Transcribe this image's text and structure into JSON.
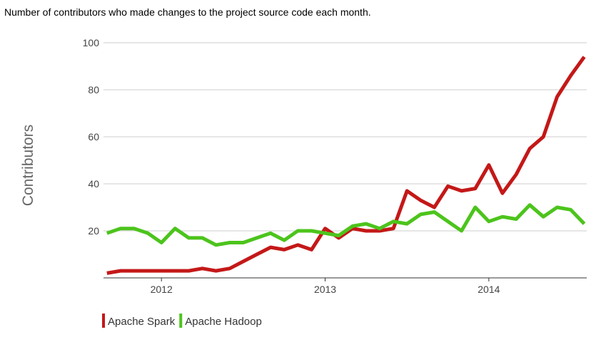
{
  "chart_data": {
    "type": "line",
    "title": "Number of contributors who made changes to the project source code each month.",
    "y_label": "Contributors",
    "x": [
      2011.667,
      2011.75,
      2011.833,
      2011.917,
      2012,
      2012.083,
      2012.167,
      2012.25,
      2012.333,
      2012.417,
      2012.5,
      2012.583,
      2012.667,
      2012.75,
      2012.833,
      2012.917,
      2013,
      2013.083,
      2013.167,
      2013.25,
      2013.333,
      2013.417,
      2013.5,
      2013.583,
      2013.667,
      2013.75,
      2013.833,
      2013.917,
      2014,
      2014.083,
      2014.167,
      2014.25,
      2014.333,
      2014.417,
      2014.5,
      2014.583
    ],
    "series": [
      {
        "name": "Apache Spark",
        "color": "#c41818",
        "values": [
          2,
          3,
          3,
          3,
          3,
          3,
          3,
          4,
          3,
          4,
          7,
          10,
          13,
          12,
          14,
          12,
          21,
          17,
          21,
          20,
          20,
          21,
          37,
          33,
          30,
          39,
          37,
          38,
          48,
          36,
          44,
          55,
          60,
          77,
          86,
          94
        ]
      },
      {
        "name": "Apache Hadoop",
        "color": "#4cc41c",
        "values": [
          19,
          21,
          21,
          19,
          15,
          21,
          17,
          17,
          14,
          15,
          15,
          17,
          19,
          16,
          20,
          20,
          19,
          18,
          22,
          23,
          21,
          24,
          23,
          27,
          28,
          24,
          20,
          30,
          24,
          26,
          25,
          31,
          26,
          30,
          29,
          23
        ]
      }
    ],
    "xlim": [
      2011.646,
      2014.598
    ],
    "xticks": [
      2012,
      2013,
      2014
    ],
    "ylim": [
      0,
      100
    ],
    "yticks": [
      20,
      40,
      60,
      80,
      100
    ],
    "grid": true
  }
}
